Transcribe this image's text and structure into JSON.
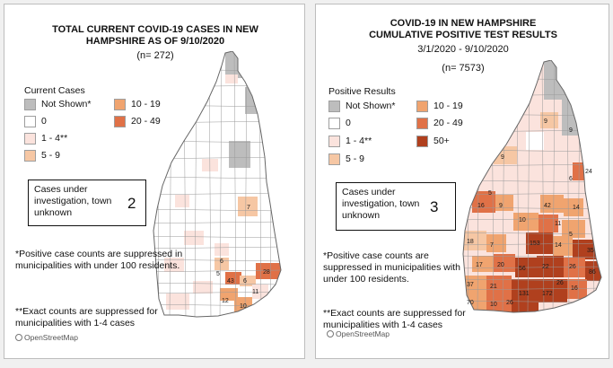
{
  "left_panel": {
    "title_line1": "TOTAL CURRENT COVID-19 CASES IN NEW",
    "title_line2": "HAMPSHIRE AS OF 9/10/2020",
    "count": "(n= 272)",
    "legend": {
      "title": "Current Cases",
      "items": [
        {
          "label": "Not Shown*",
          "color": "#bdbdbd"
        },
        {
          "label": "0",
          "color": "#ffffff"
        },
        {
          "label": "1 - 4**",
          "color": "#fbe3dd"
        },
        {
          "label": "5 - 9",
          "color": "#f6c7a4"
        },
        {
          "label": "10 - 19",
          "color": "#f0a46f"
        },
        {
          "label": "20 - 49",
          "color": "#e07147"
        }
      ]
    },
    "unknown_box": {
      "label": "Cases under investigation, town unknown",
      "value": "2"
    },
    "note1": "*Positive case counts are suppressed in municipalities with under 100 residents.",
    "note2": "**Exact counts are suppressed for municipalities with 1-4 cases",
    "credit": "OpenStreetMap",
    "map_labels": [
      "7",
      "6",
      "5",
      "43",
      "6",
      "11",
      "10",
      "12",
      "28"
    ]
  },
  "right_panel": {
    "title_line1": "COVID-19 IN NEW HAMPSHIRE",
    "title_line2": "CUMULATIVE POSITIVE TEST RESULTS",
    "subtitle": "3/1/2020 - 9/10/2020",
    "count": "(n= 7573)",
    "legend": {
      "title": "Positive Results",
      "items": [
        {
          "label": "Not Shown*",
          "color": "#bdbdbd"
        },
        {
          "label": "0",
          "color": "#ffffff"
        },
        {
          "label": "1 - 4**",
          "color": "#fbe3dd"
        },
        {
          "label": "5 - 9",
          "color": "#f6c7a4"
        },
        {
          "label": "10 - 19",
          "color": "#f0a46f"
        },
        {
          "label": "20 - 49",
          "color": "#e07147"
        },
        {
          "label": "50+",
          "color": "#b0401e"
        }
      ]
    },
    "unknown_box": {
      "label": "Cases under investigation, town unknown",
      "value": "3"
    },
    "note1": "*Positive case counts are suppressed in municipalities with under 100 residents.",
    "note2": "**Exact counts are suppressed for municipalities with 1-4 cases",
    "credit": "OpenStreetMap",
    "map_labels": [
      "9",
      "9",
      "24",
      "6",
      "9",
      "5",
      "16",
      "14",
      "9",
      "10",
      "42",
      "11",
      "18",
      "153",
      "7",
      "14",
      "5",
      "35",
      "20",
      "17",
      "26",
      "56",
      "22",
      "86",
      "37",
      "21",
      "70",
      "10",
      "26",
      "16",
      "131",
      "172",
      "26"
    ]
  }
}
